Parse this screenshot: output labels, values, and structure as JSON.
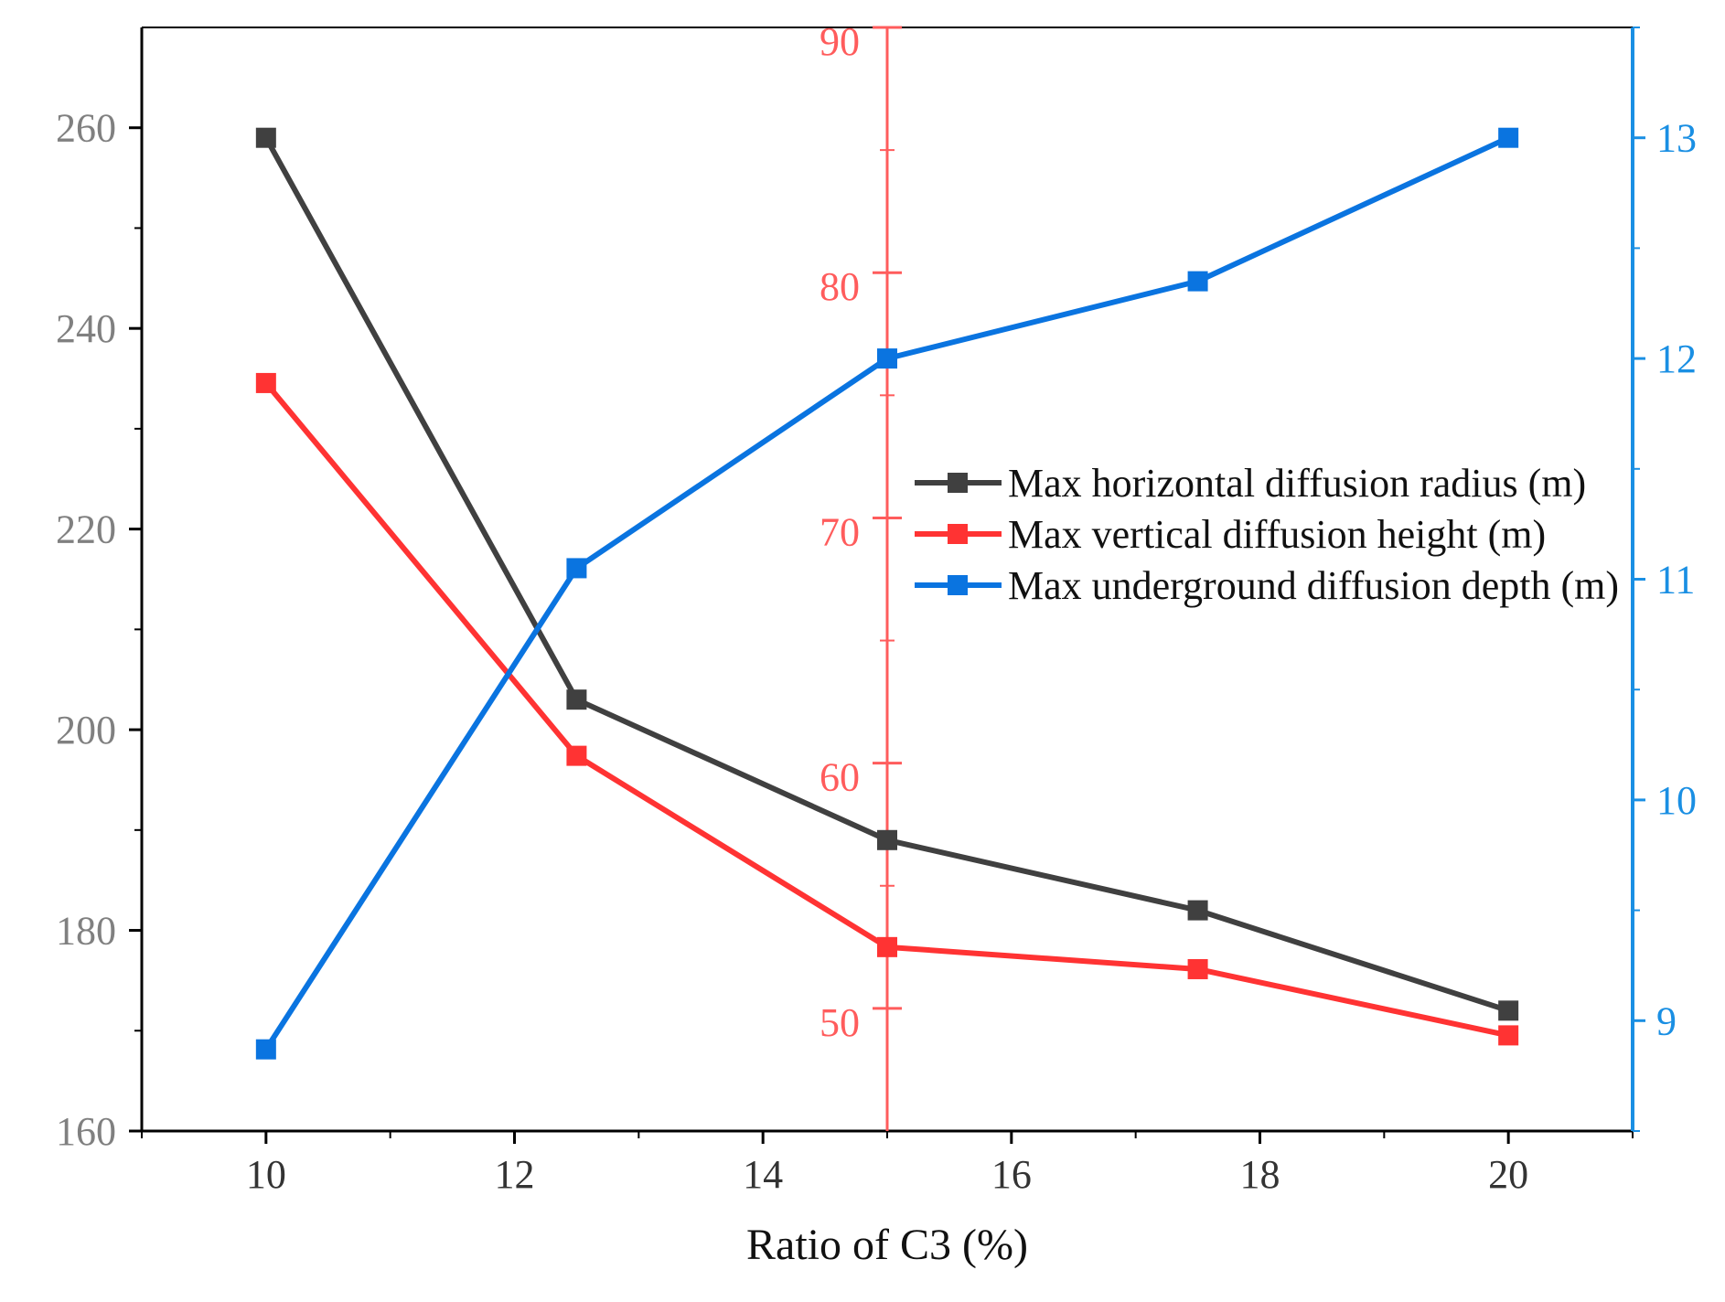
{
  "chart_data": {
    "type": "line",
    "xlabel": "Ratio of C3 (%)",
    "x": [
      10,
      12.5,
      15,
      17.5,
      20
    ],
    "x_axis": {
      "min": 9,
      "max": 21,
      "ticks": [
        10,
        12,
        14,
        16,
        18,
        20
      ]
    },
    "axes": {
      "left": {
        "min": 160,
        "max": 270,
        "ticks": [
          160,
          180,
          200,
          220,
          240,
          260
        ],
        "color": "#808080"
      },
      "middle": {
        "min": 45,
        "max": 90,
        "ticks": [
          50,
          60,
          70,
          80,
          90
        ],
        "color": "#ff5c5c"
      },
      "right": {
        "min": 8.5,
        "max": 13.5,
        "ticks": [
          9,
          10,
          11,
          12,
          13
        ],
        "color": "#1a8fe3"
      }
    },
    "series": [
      {
        "name": "Max horizontal diffusion radius (m)",
        "axis": "left",
        "color": "#404040",
        "values": [
          259,
          203,
          189,
          182,
          172
        ]
      },
      {
        "name": "Max vertical diffusion height (m)",
        "axis": "middle",
        "color": "#ff3333",
        "values": [
          75.5,
          60.3,
          52.5,
          51.6,
          48.9
        ]
      },
      {
        "name": "Max underground diffusion depth (m)",
        "axis": "right",
        "color": "#0a74e0",
        "values": [
          8.87,
          11.05,
          12.0,
          12.35,
          13.0
        ]
      }
    ],
    "legend_position": "center-right",
    "grid": false
  }
}
